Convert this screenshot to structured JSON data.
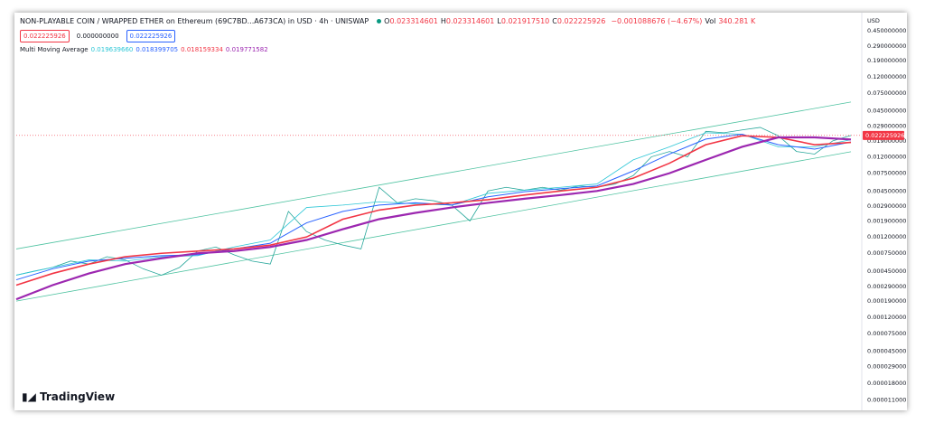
{
  "chart_data": {
    "type": "line",
    "title": "NON-PLAYABLE COIN / WRAPPED ETHER on Ethereum (69C7BD...A673CA) in USD · 4h · UNISWAP",
    "ohlc": [
      {
        "label": "O",
        "value": "0.023314601"
      },
      {
        "label": "H",
        "value": "0.023314601"
      },
      {
        "label": "L",
        "value": "0.021917510"
      },
      {
        "label": "C",
        "value": "0.022225926"
      }
    ],
    "change": "−0.001088676 (−4.67%)",
    "volume": {
      "label": "Vol",
      "value": "340.281 K"
    },
    "boxes": [
      "0.022225926",
      "0.000000000",
      "0.022225926"
    ],
    "indicator": {
      "title": "Multi Moving Average",
      "readings": [
        "0.019639660",
        "0.018399705",
        "0.018159334",
        "0.019771582"
      ]
    },
    "currency": "USD",
    "price_label": "0.022225926",
    "brand": "TradingView",
    "log_scale": true,
    "grid": false,
    "ylim": [
      8e-06,
      0.5
    ],
    "yticks": [
      {
        "value": 0.45,
        "label": "0.450000000"
      },
      {
        "value": 0.29,
        "label": "0.290000000"
      },
      {
        "value": 0.19,
        "label": "0.190000000"
      },
      {
        "value": 0.12,
        "label": "0.120000000"
      },
      {
        "value": 0.075,
        "label": "0.075000000"
      },
      {
        "value": 0.045,
        "label": "0.045000000"
      },
      {
        "value": 0.029,
        "label": "0.029000000"
      },
      {
        "value": 0.019,
        "label": "0.019000000"
      },
      {
        "value": 0.012,
        "label": "0.012000000"
      },
      {
        "value": 0.0075,
        "label": "0.007500000"
      },
      {
        "value": 0.0045,
        "label": "0.004500000"
      },
      {
        "value": 0.0029,
        "label": "0.002900000"
      },
      {
        "value": 0.0019,
        "label": "0.001900000"
      },
      {
        "value": 0.0012,
        "label": "0.001200000"
      },
      {
        "value": 0.00075,
        "label": "0.000750000"
      },
      {
        "value": 0.00045,
        "label": "0.000450000"
      },
      {
        "value": 0.00029,
        "label": "0.000290000"
      },
      {
        "value": 0.00019,
        "label": "0.000190000"
      },
      {
        "value": 0.00012,
        "label": "0.000120000"
      },
      {
        "value": 7.5e-05,
        "label": "0.000075000"
      },
      {
        "value": 4.5e-05,
        "label": "0.000045000"
      },
      {
        "value": 2.9e-05,
        "label": "0.000029000"
      },
      {
        "value": 1.8e-05,
        "label": "0.000018000"
      },
      {
        "value": 1.1e-05,
        "label": "0.000011000"
      }
    ],
    "channel": [
      {
        "color": "#4fc3a1",
        "values": [
          0.00085,
          0.058
        ]
      },
      {
        "color": "#4fc3a1",
        "values": [
          0.00019,
          0.0139
        ]
      }
    ],
    "series": [
      {
        "color": "#26a69a",
        "values": [
          0.0004,
          0.00045,
          0.0005,
          0.0006,
          0.00055,
          0.00068,
          0.00062,
          0.00048,
          0.0004,
          0.0005,
          0.0008,
          0.0009,
          0.00072,
          0.0006,
          0.00055,
          0.0025,
          0.0014,
          0.0011,
          0.00095,
          0.00085,
          0.005,
          0.0032,
          0.0036,
          0.0034,
          0.003,
          0.0019,
          0.0045,
          0.005,
          0.0046,
          0.005,
          0.0046,
          0.0052,
          0.005,
          0.0055,
          0.007,
          0.012,
          0.014,
          0.012,
          0.025,
          0.024,
          0.026,
          0.028,
          0.022,
          0.014,
          0.013,
          0.019,
          0.022225926
        ]
      },
      {
        "color": "#2cc6d6",
        "values": [
          0.0004,
          0.0005,
          0.00062,
          0.0006,
          0.00068,
          0.0007,
          0.0009,
          0.0011,
          0.0028,
          0.003,
          0.0033,
          0.0031,
          0.003,
          0.0042,
          0.0046,
          0.005,
          0.0055,
          0.011,
          0.016,
          0.024,
          0.023,
          0.016,
          0.016,
          0.01963966
        ]
      },
      {
        "color": "#2962ff",
        "values": [
          0.00035,
          0.00048,
          0.0006,
          0.00065,
          0.0007,
          0.00072,
          0.00085,
          0.001,
          0.0018,
          0.0025,
          0.003,
          0.0032,
          0.003,
          0.0038,
          0.0044,
          0.0048,
          0.0052,
          0.008,
          0.013,
          0.02,
          0.023,
          0.017,
          0.015,
          0.018399705
        ]
      },
      {
        "color": "#f23645",
        "values": [
          0.0003,
          0.00042,
          0.00055,
          0.00068,
          0.00075,
          0.0008,
          0.00085,
          0.00095,
          0.0012,
          0.002,
          0.0026,
          0.003,
          0.0032,
          0.0035,
          0.004,
          0.0045,
          0.005,
          0.0065,
          0.01,
          0.017,
          0.022,
          0.021,
          0.017,
          0.018159334
        ]
      },
      {
        "color": "#9c27b0",
        "values": [
          0.0002,
          0.0003,
          0.00042,
          0.00055,
          0.00065,
          0.00075,
          0.0008,
          0.0009,
          0.0011,
          0.0015,
          0.002,
          0.0024,
          0.0028,
          0.0032,
          0.0036,
          0.004,
          0.0045,
          0.0055,
          0.0075,
          0.011,
          0.016,
          0.021,
          0.021,
          0.019771582
        ]
      }
    ]
  }
}
